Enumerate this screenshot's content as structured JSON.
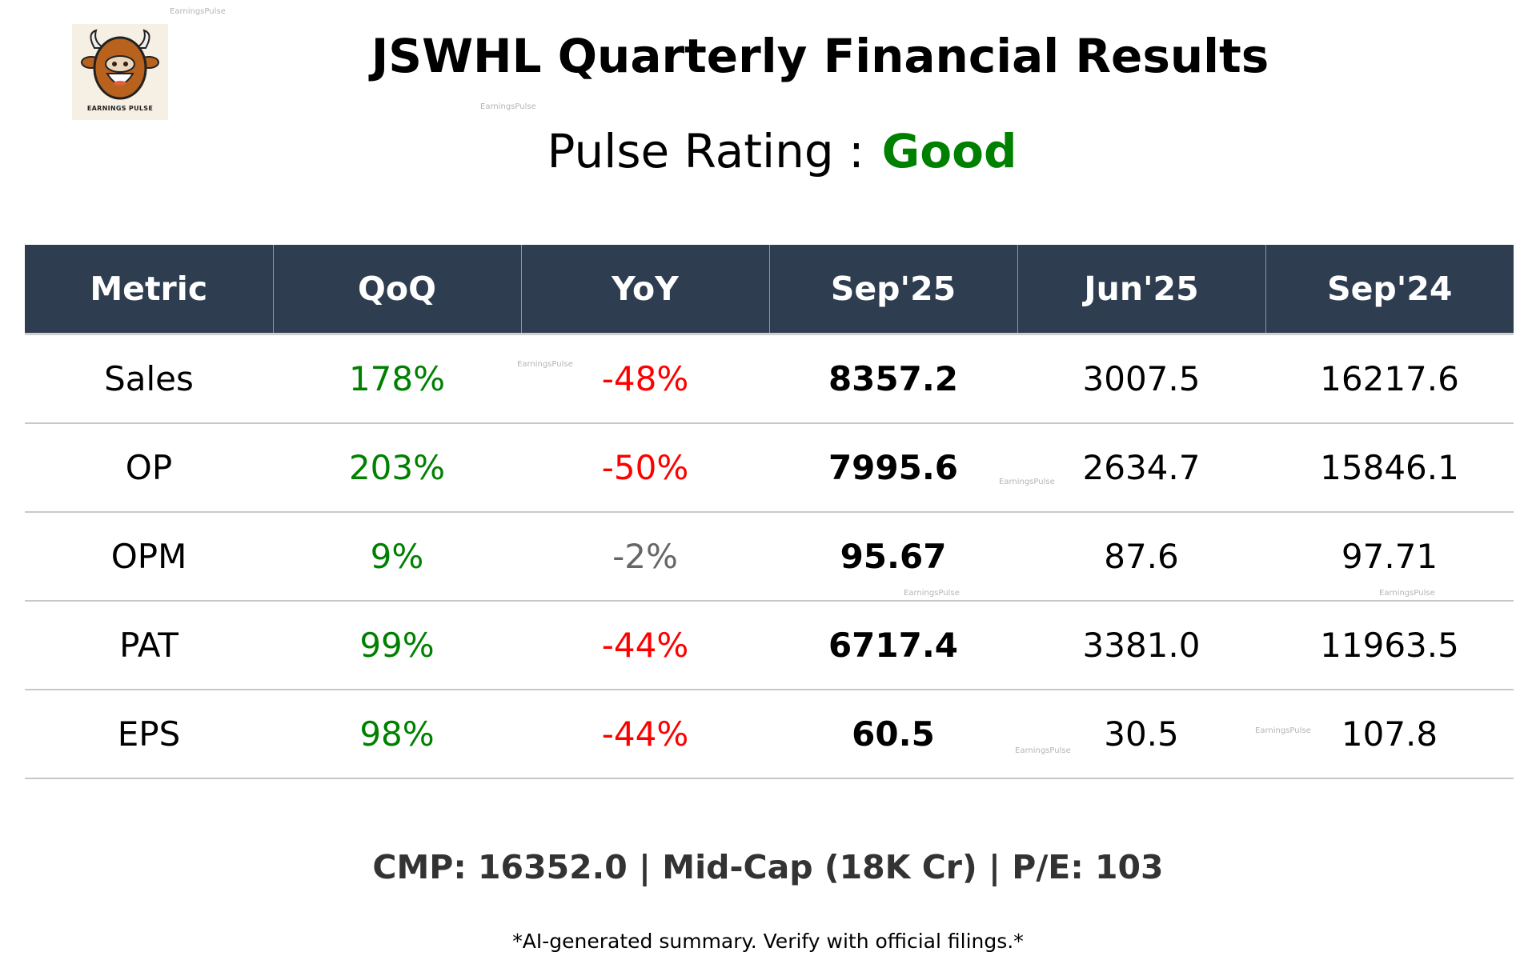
{
  "logo": {
    "text": "EARNINGS PULSE"
  },
  "title": "JSWHL Quarterly Financial Results",
  "rating": {
    "label": "Pulse Rating :",
    "value": "Good",
    "color": "#008000"
  },
  "table": {
    "headers": [
      "Metric",
      "QoQ",
      "YoY",
      "Sep'25",
      "Jun'25",
      "Sep'24"
    ],
    "rows": [
      {
        "metric": "Sales",
        "qoq": "178%",
        "yoy": "-48%",
        "sep25": "8357.2",
        "jun25": "3007.5",
        "sep24": "16217.6",
        "qoq_color": "#008000",
        "yoy_color": "#ff0000"
      },
      {
        "metric": "OP",
        "qoq": "203%",
        "yoy": "-50%",
        "sep25": "7995.6",
        "jun25": "2634.7",
        "sep24": "15846.1",
        "qoq_color": "#008000",
        "yoy_color": "#ff0000"
      },
      {
        "metric": "OPM",
        "qoq": "9%",
        "yoy": "-2%",
        "sep25": "95.67",
        "jun25": "87.6",
        "sep24": "97.71",
        "qoq_color": "#008000",
        "yoy_color": "#666666"
      },
      {
        "metric": "PAT",
        "qoq": "99%",
        "yoy": "-44%",
        "sep25": "6717.4",
        "jun25": "3381.0",
        "sep24": "11963.5",
        "qoq_color": "#008000",
        "yoy_color": "#ff0000"
      },
      {
        "metric": "EPS",
        "qoq": "98%",
        "yoy": "-44%",
        "sep25": "60.5",
        "jun25": "30.5",
        "sep24": "107.8",
        "qoq_color": "#008000",
        "yoy_color": "#ff0000"
      }
    ]
  },
  "summary": "CMP: 16352.0 | Mid-Cap (18K Cr) | P/E: 103",
  "disclaimer": "*AI-generated summary. Verify with official filings.*",
  "watermark": "EarningsPulse",
  "colors": {
    "header_bg": "#2e3e50",
    "positive": "#008000",
    "negative": "#ff0000",
    "neutral": "#666666"
  }
}
